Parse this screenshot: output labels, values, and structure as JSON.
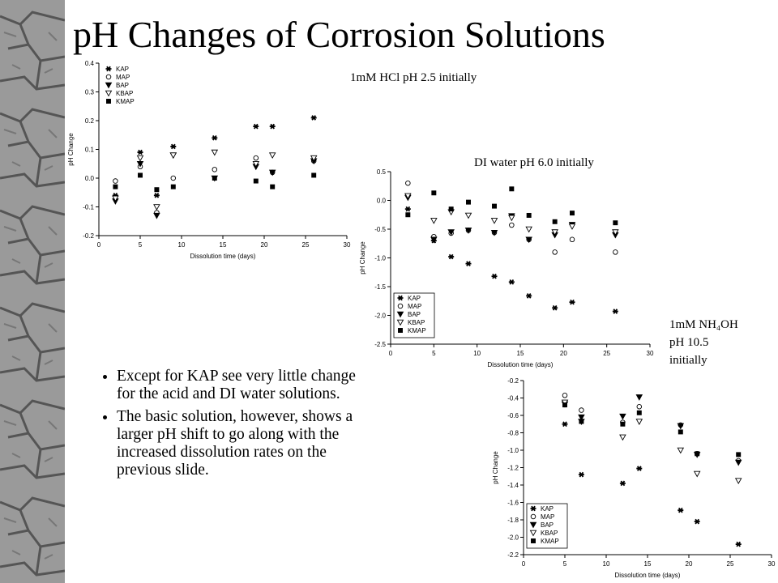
{
  "title": "pH Changes of Corrosion Solutions",
  "bullets": [
    "Except for KAP see very little change for the acid and DI water solutions.",
    "The basic solution, however, shows a larger pH shift to go along with the increased dissolution rates on the previous slide."
  ],
  "chart_data": [
    {
      "type": "scatter",
      "annotation": [
        "1mM HCl pH 2.5 initially"
      ],
      "x_label": "Dissolution time (days)",
      "y_label": "pH Change",
      "xlim": [
        0,
        30
      ],
      "xticks": [
        0,
        5,
        10,
        15,
        20,
        25,
        30
      ],
      "ylim": [
        -0.2,
        0.4
      ],
      "yticks": [
        -0.2,
        -0.1,
        {
          "value": 0,
          "label": "0.0"
        },
        0.1,
        0.2,
        0.3,
        0.4
      ],
      "legend": "upper-left",
      "x": [
        2,
        5,
        7,
        9,
        14,
        19,
        21,
        26
      ],
      "series": [
        {
          "name": "KAP",
          "marker": "asterisk",
          "color": "#000000",
          "values": [
            -0.06,
            0.09,
            -0.06,
            0.11,
            0.14,
            0.18,
            0.18,
            0.21
          ]
        },
        {
          "name": "MAP",
          "marker": "open-circle",
          "color": "#000000",
          "values": [
            -0.01,
            0.04,
            -0.12,
            0.0,
            0.03,
            0.07,
            0.02,
            0.06
          ]
        },
        {
          "name": "BAP",
          "marker": "filled-triangle",
          "color": "#000000",
          "values": [
            -0.08,
            0.05,
            -0.13,
            0.08,
            0.0,
            0.04,
            0.02,
            0.06
          ]
        },
        {
          "name": "KBAP",
          "marker": "open-triangle",
          "color": "#000000",
          "values": [
            -0.07,
            0.07,
            -0.1,
            0.08,
            0.09,
            0.05,
            0.08,
            0.07
          ]
        },
        {
          "name": "KMAP",
          "marker": "filled-square",
          "color": "#000000",
          "values": [
            -0.03,
            0.01,
            -0.04,
            -0.03,
            0.0,
            -0.01,
            -0.03,
            0.01
          ]
        }
      ]
    },
    {
      "type": "scatter",
      "annotation": [
        "DI water pH 6.0 initially"
      ],
      "x_label": "Dissolution time (days)",
      "y_label": "pH Change",
      "xlim": [
        0,
        30
      ],
      "xticks": [
        0,
        5,
        10,
        15,
        20,
        25,
        30
      ],
      "ylim": [
        -2.5,
        0.5
      ],
      "yticks": [
        -2.5,
        {
          "value": -2,
          "label": "-2.0"
        },
        -1.5,
        {
          "value": -1,
          "label": "-1.0"
        },
        -0.5,
        {
          "value": 0,
          "label": "0.0"
        },
        0.5
      ],
      "legend": "lower-left",
      "x": [
        2,
        5,
        7,
        9,
        12,
        14,
        16,
        19,
        21,
        26
      ],
      "series": [
        {
          "name": "KAP",
          "marker": "asterisk",
          "color": "#000000",
          "values": [
            -0.15,
            -0.7,
            -0.98,
            -1.1,
            -1.32,
            -1.42,
            -1.66,
            -1.87,
            -1.77,
            -1.93
          ]
        },
        {
          "name": "MAP",
          "marker": "open-circle",
          "color": "#000000",
          "values": [
            0.3,
            -0.63,
            -0.57,
            -0.52,
            -0.56,
            -0.43,
            -0.68,
            -0.9,
            -0.68,
            -0.9
          ]
        },
        {
          "name": "BAP",
          "marker": "filled-triangle",
          "color": "#000000",
          "values": [
            0.05,
            -0.68,
            -0.55,
            -0.52,
            -0.56,
            -0.27,
            -0.68,
            -0.6,
            -0.42,
            -0.6
          ]
        },
        {
          "name": "KBAP",
          "marker": "open-triangle",
          "color": "#000000",
          "values": [
            0.08,
            -0.35,
            -0.2,
            -0.26,
            -0.35,
            -0.3,
            -0.5,
            -0.55,
            -0.45,
            -0.55
          ]
        },
        {
          "name": "KMAP",
          "marker": "filled-square",
          "color": "#000000",
          "values": [
            -0.25,
            0.13,
            -0.15,
            -0.03,
            -0.1,
            0.2,
            -0.26,
            -0.37,
            -0.22,
            -0.39
          ]
        }
      ]
    },
    {
      "type": "scatter",
      "annotation": [
        "1mM NH₄OH",
        "pH 10.5",
        "initially"
      ],
      "x_label": "Dissolution time (days)",
      "y_label": "pH Change",
      "xlim": [
        0,
        30
      ],
      "xticks": [
        0,
        5,
        10,
        15,
        20,
        25,
        30
      ],
      "ylim": [
        -2.2,
        -0.2
      ],
      "yticks": [
        -2.2,
        {
          "value": -2,
          "label": "-2.0"
        },
        -1.8,
        -1.6,
        -1.4,
        -1.2,
        {
          "value": -1,
          "label": "-1.0"
        },
        -0.8,
        -0.6,
        -0.4,
        -0.2
      ],
      "legend": "lower-left",
      "x": [
        5,
        7,
        12,
        14,
        19,
        21,
        26
      ],
      "series": [
        {
          "name": "KAP",
          "marker": "asterisk",
          "color": "#000000",
          "values": [
            -0.7,
            -1.28,
            -1.38,
            -1.21,
            -1.69,
            -1.82,
            -2.08
          ]
        },
        {
          "name": "MAP",
          "marker": "open-circle",
          "color": "#000000",
          "values": [
            -0.37,
            -0.54,
            -0.68,
            -0.5,
            -0.71,
            -1.04,
            -1.12
          ]
        },
        {
          "name": "BAP",
          "marker": "filled-triangle",
          "color": "#000000",
          "values": [
            -0.47,
            -0.62,
            -0.61,
            -0.39,
            -0.72,
            -1.05,
            -1.14
          ]
        },
        {
          "name": "KBAP",
          "marker": "open-triangle",
          "color": "#000000",
          "values": [
            -0.45,
            -0.67,
            -0.85,
            -0.67,
            -1.0,
            -1.27,
            -1.35
          ]
        },
        {
          "name": "KMAP",
          "marker": "filled-square",
          "color": "#000000",
          "values": [
            -0.48,
            -0.67,
            -0.7,
            -0.57,
            -0.79,
            -1.04,
            -1.05
          ]
        }
      ]
    }
  ]
}
